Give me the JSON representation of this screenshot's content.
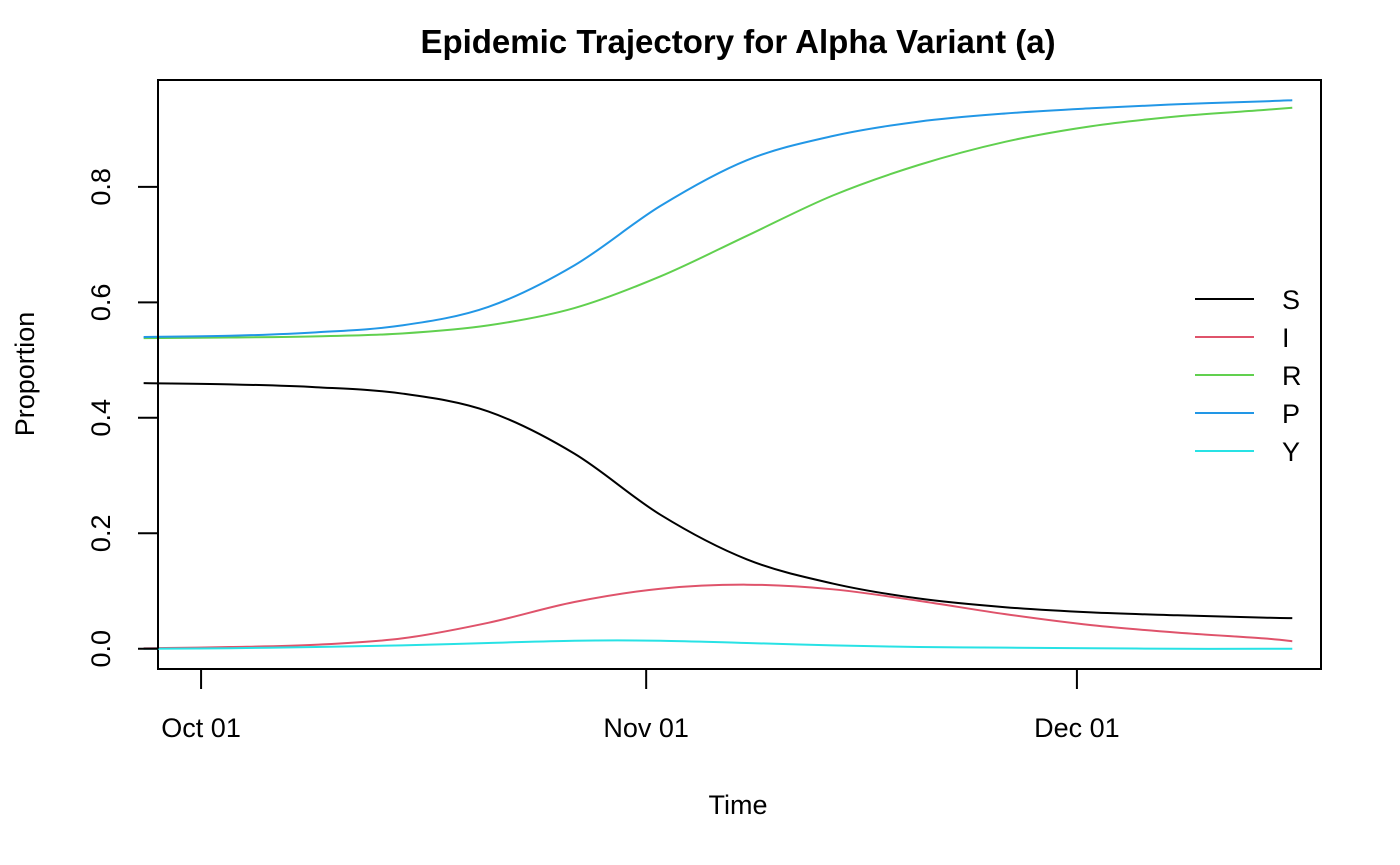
{
  "chart_data": {
    "type": "line",
    "title": "Epidemic Trajectory for Alpha Variant (a)",
    "xlabel": "Time",
    "ylabel": "Proportion",
    "x_axis": {
      "type": "date",
      "range": [
        "2021-09-28",
        "2021-12-18"
      ],
      "ticks": [
        {
          "date": "2021-10-01",
          "label": "Oct 01"
        },
        {
          "date": "2021-11-01",
          "label": "Nov 01"
        },
        {
          "date": "2021-12-01",
          "label": "Dec 01"
        }
      ]
    },
    "y_axis": {
      "range": [
        -0.035,
        0.985
      ],
      "ticks": [
        {
          "value": 0.0,
          "label": "0.0"
        },
        {
          "value": 0.2,
          "label": "0.2"
        },
        {
          "value": 0.4,
          "label": "0.4"
        },
        {
          "value": 0.6,
          "label": "0.6"
        },
        {
          "value": 0.8,
          "label": "0.8"
        }
      ]
    },
    "grid": false,
    "legend": {
      "position": "right"
    },
    "x": [
      "2021-09-27",
      "2021-10-03",
      "2021-10-09",
      "2021-10-15",
      "2021-10-21",
      "2021-10-27",
      "2021-11-02",
      "2021-11-08",
      "2021-11-14",
      "2021-11-20",
      "2021-11-26",
      "2021-12-02",
      "2021-12-08",
      "2021-12-14",
      "2021-12-16"
    ],
    "series": [
      {
        "name": "S",
        "color": "#000000",
        "values": [
          0.46,
          0.458,
          0.453,
          0.442,
          0.411,
          0.338,
          0.232,
          0.155,
          0.113,
          0.087,
          0.072,
          0.063,
          0.058,
          0.054,
          0.053
        ]
      },
      {
        "name": "I",
        "color": "#DF536B",
        "values": [
          0.001,
          0.003,
          0.007,
          0.018,
          0.045,
          0.081,
          0.104,
          0.111,
          0.103,
          0.083,
          0.06,
          0.041,
          0.028,
          0.018,
          0.013
        ]
      },
      {
        "name": "R",
        "color": "#61D04F",
        "values": [
          0.538,
          0.539,
          0.541,
          0.546,
          0.56,
          0.59,
          0.645,
          0.715,
          0.785,
          0.838,
          0.878,
          0.905,
          0.922,
          0.933,
          0.937
        ]
      },
      {
        "name": "P",
        "color": "#2297E6",
        "values": [
          0.54,
          0.542,
          0.548,
          0.56,
          0.592,
          0.664,
          0.767,
          0.846,
          0.888,
          0.913,
          0.927,
          0.936,
          0.943,
          0.948,
          0.95
        ]
      },
      {
        "name": "Y",
        "color": "#28E2E5",
        "values": [
          0.0,
          0.001,
          0.003,
          0.006,
          0.01,
          0.014,
          0.014,
          0.01,
          0.006,
          0.003,
          0.002,
          0.001,
          0.0,
          0.0,
          0.0
        ]
      }
    ]
  }
}
